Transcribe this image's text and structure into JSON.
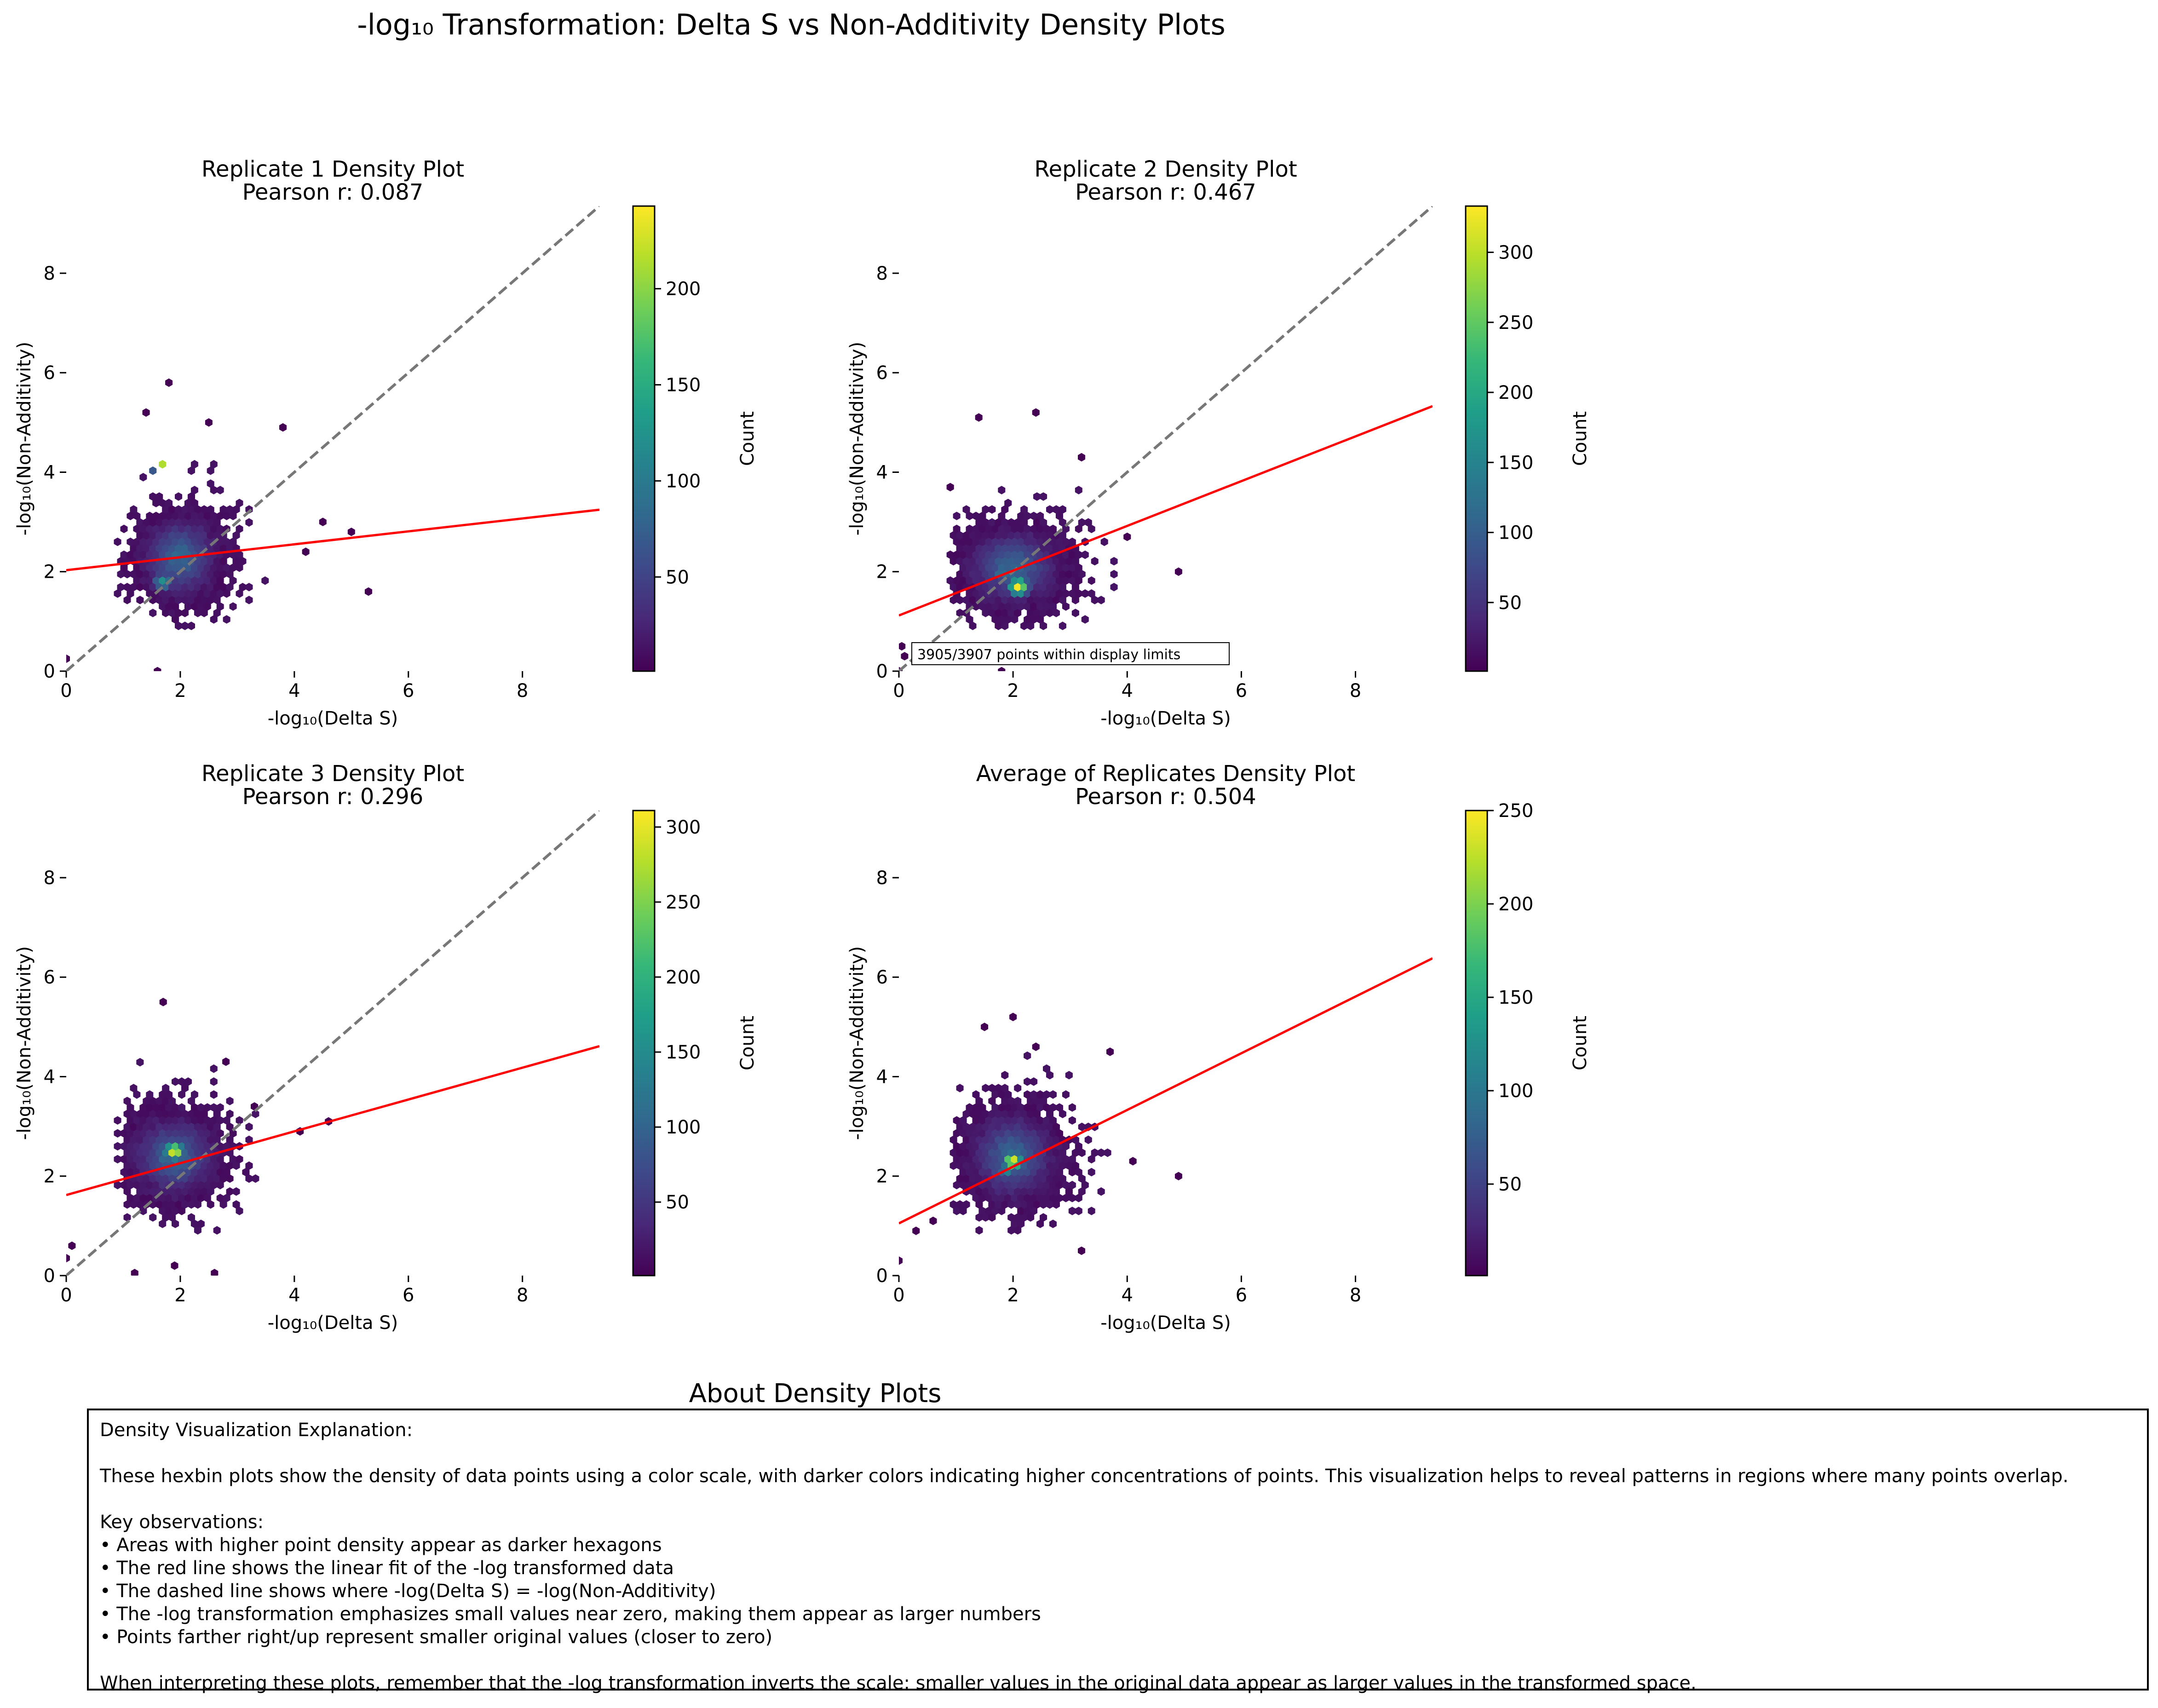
{
  "figure": {
    "title": "-log₁₀ Transformation: Delta S vs Non-Additivity Density Plots"
  },
  "chart_data": [
    {
      "type": "heatmap",
      "subtype": "hexbin",
      "title": "Replicate 1 Density Plot",
      "subtitle": "Pearson r: 0.087",
      "xlabel": "-log₁₀(Delta S)",
      "ylabel": "-log₁₀(Non-Additivity)",
      "xlim": [
        0,
        9.35
      ],
      "ylim": [
        0,
        9.35
      ],
      "xticks": [
        "0",
        "2",
        "4",
        "6",
        "8"
      ],
      "yticks": [
        "0",
        "2",
        "4",
        "6",
        "8"
      ],
      "colorbar": {
        "label": "Count",
        "min": 1,
        "max": 243,
        "ticks": [
          "50",
          "100",
          "150",
          "200"
        ]
      },
      "fit_line": {
        "intercept": 2.03,
        "slope": 0.13
      },
      "identity_line": true,
      "cloud": {
        "center": [
          2.0,
          2.3
        ],
        "spread": [
          0.5,
          0.6
        ]
      },
      "hotspots": [
        [
          1.7,
          4.1,
          1.0
        ],
        [
          1.7,
          1.8,
          0.5
        ]
      ],
      "outliers": [
        [
          1.6,
          0.0
        ],
        [
          0.0,
          0.25
        ],
        [
          1.8,
          5.8
        ],
        [
          1.4,
          5.2
        ],
        [
          3.8,
          4.9
        ],
        [
          5.3,
          1.6
        ],
        [
          4.5,
          3.0
        ],
        [
          5.0,
          2.8
        ],
        [
          4.2,
          2.4
        ],
        [
          2.5,
          5.0
        ]
      ],
      "annotation": ""
    },
    {
      "type": "heatmap",
      "subtype": "hexbin",
      "title": "Replicate 2 Density Plot",
      "subtitle": "Pearson r: 0.467",
      "xlabel": "-log₁₀(Delta S)",
      "ylabel": "-log₁₀(Non-Additivity)",
      "xlim": [
        0,
        9.35
      ],
      "ylim": [
        0,
        9.35
      ],
      "xticks": [
        "0",
        "2",
        "4",
        "6",
        "8"
      ],
      "yticks": [
        "0",
        "2",
        "4",
        "6",
        "8"
      ],
      "colorbar": {
        "label": "Count",
        "min": 1,
        "max": 333,
        "ticks": [
          "50",
          "100",
          "150",
          "200",
          "250",
          "300"
        ]
      },
      "fit_line": {
        "intercept": 1.12,
        "slope": 0.45
      },
      "identity_line": true,
      "cloud": {
        "center": [
          2.0,
          2.1
        ],
        "spread": [
          0.6,
          0.55
        ]
      },
      "hotspots": [
        [
          2.1,
          1.7,
          1.0
        ],
        [
          1.8,
          2.0,
          0.4
        ]
      ],
      "outliers": [
        [
          1.8,
          0.0
        ],
        [
          0.05,
          0.5
        ],
        [
          0.1,
          0.3
        ],
        [
          0.9,
          3.7
        ],
        [
          1.4,
          5.1
        ],
        [
          2.4,
          5.2
        ],
        [
          4.0,
          2.7
        ],
        [
          4.9,
          2.0
        ],
        [
          3.2,
          4.3
        ],
        [
          0.0,
          0.0
        ]
      ],
      "annotation": "3905/3907 points within display limits"
    },
    {
      "type": "heatmap",
      "subtype": "hexbin",
      "title": "Replicate 3 Density Plot",
      "subtitle": "Pearson r: 0.296",
      "xlabel": "-log₁₀(Delta S)",
      "ylabel": "-log₁₀(Non-Additivity)",
      "xlim": [
        0,
        9.35
      ],
      "ylim": [
        0,
        9.35
      ],
      "xticks": [
        "0",
        "2",
        "4",
        "6",
        "8"
      ],
      "yticks": [
        "0",
        "2",
        "4",
        "6",
        "8"
      ],
      "colorbar": {
        "label": "Count",
        "min": 1,
        "max": 311,
        "ticks": [
          "50",
          "100",
          "150",
          "200",
          "250",
          "300"
        ]
      },
      "fit_line": {
        "intercept": 1.62,
        "slope": 0.32
      },
      "identity_line": true,
      "cloud": {
        "center": [
          1.9,
          2.4
        ],
        "spread": [
          0.55,
          0.6
        ]
      },
      "hotspots": [
        [
          1.9,
          2.5,
          1.0
        ],
        [
          1.7,
          2.3,
          0.35
        ]
      ],
      "outliers": [
        [
          1.7,
          5.5
        ],
        [
          0.0,
          0.35
        ],
        [
          0.1,
          0.6
        ],
        [
          1.9,
          0.2
        ],
        [
          2.6,
          0.05
        ],
        [
          1.2,
          0.05
        ],
        [
          4.6,
          3.1
        ],
        [
          4.1,
          2.9
        ],
        [
          2.8,
          4.3
        ],
        [
          3.3,
          3.4
        ]
      ],
      "annotation": ""
    },
    {
      "type": "heatmap",
      "subtype": "hexbin",
      "title": "Average of Replicates Density Plot",
      "subtitle": "Pearson r: 0.504",
      "xlabel": "-log₁₀(Delta S)",
      "ylabel": "-log₁₀(Non-Additivity)",
      "xlim": [
        0,
        9.35
      ],
      "ylim": [
        0,
        9.35
      ],
      "xticks": [
        "0",
        "2",
        "4",
        "6",
        "8"
      ],
      "yticks": [
        "0",
        "2",
        "4",
        "6",
        "8"
      ],
      "colorbar": {
        "label": "Count",
        "min": 1,
        "max": 250,
        "ticks": [
          "50",
          "100",
          "150",
          "200",
          "250"
        ]
      },
      "fit_line": {
        "intercept": 1.05,
        "slope": 0.57
      },
      "identity_line": false,
      "cloud": {
        "center": [
          2.0,
          2.4
        ],
        "spread": [
          0.55,
          0.65
        ]
      },
      "hotspots": [
        [
          2.0,
          2.3,
          1.0
        ],
        [
          1.9,
          2.1,
          0.45
        ],
        [
          0.5,
          0.75,
          0.45
        ]
      ],
      "outliers": [
        [
          4.9,
          2.0
        ],
        [
          3.7,
          4.5
        ],
        [
          2.0,
          5.2
        ],
        [
          1.5,
          5.0
        ],
        [
          0.0,
          0.3
        ],
        [
          0.3,
          0.9
        ],
        [
          0.6,
          1.1
        ],
        [
          4.1,
          2.3
        ],
        [
          2.4,
          4.6
        ],
        [
          3.2,
          0.5
        ]
      ],
      "annotation": ""
    }
  ],
  "about": {
    "title": "About Density Plots",
    "lines": [
      "Density Visualization Explanation:",
      "",
      "These hexbin plots show the density of data points using a color scale, with darker colors indicating higher concentrations of points. This visualization helps to reveal patterns in regions where many points overlap.",
      "",
      "Key observations:",
      "• Areas with higher point density appear as darker hexagons",
      "• The red line shows the linear fit of the -log transformed data",
      "• The dashed line shows where -log(Delta S) = -log(Non-Additivity)",
      "• The -log transformation emphasizes small values near zero, making them appear as larger numbers",
      "• Points farther right/up represent smaller original values (closer to zero)",
      "",
      "When interpreting these plots, remember that the -log transformation inverts the scale: smaller values in the original data appear as larger values in the transformed space."
    ]
  },
  "colors": {
    "fit_line": "#ff0000",
    "identity_line": "#777777",
    "colormap": [
      "#440154",
      "#482878",
      "#3e4989",
      "#31688e",
      "#26828e",
      "#1f9e89",
      "#35b779",
      "#6ece58",
      "#b5de2b",
      "#fde725"
    ]
  }
}
